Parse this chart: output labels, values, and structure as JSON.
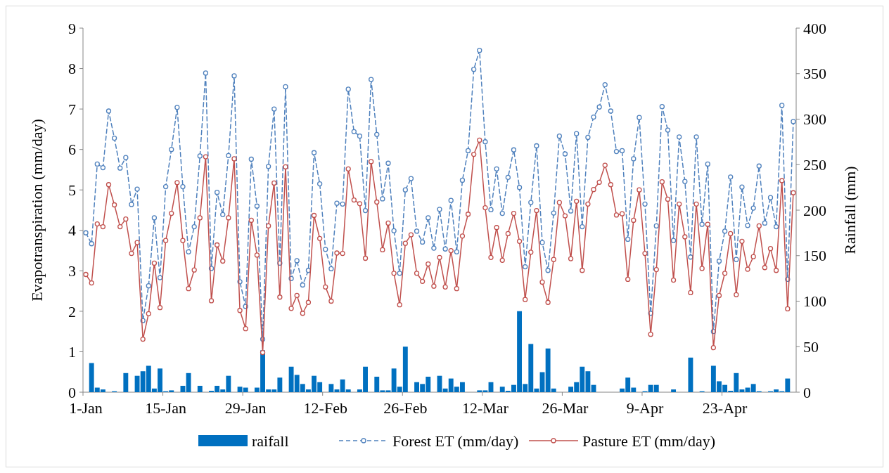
{
  "chart_data": {
    "type": "line",
    "ylabel": "Evapotranspiration (mm/day)",
    "y2label": "Rainfall (mm)",
    "legend": "bottom",
    "categories": [
      "1-Jan",
      null,
      null,
      null,
      null,
      null,
      null,
      null,
      null,
      null,
      null,
      null,
      null,
      null,
      "15-Jan",
      null,
      null,
      null,
      null,
      null,
      null,
      null,
      null,
      null,
      null,
      null,
      null,
      null,
      "29-Jan",
      null,
      null,
      null,
      null,
      null,
      null,
      null,
      null,
      null,
      null,
      null,
      null,
      null,
      "12-Feb",
      null,
      null,
      null,
      null,
      null,
      null,
      null,
      null,
      null,
      null,
      null,
      null,
      null,
      "26-Feb",
      null,
      null,
      null,
      null,
      null,
      null,
      null,
      null,
      null,
      null,
      null,
      null,
      null,
      "12-Mar",
      null,
      null,
      null,
      null,
      null,
      null,
      null,
      null,
      null,
      null,
      null,
      null,
      null,
      "26-Mar",
      null,
      null,
      null,
      null,
      null,
      null,
      null,
      null,
      null,
      null,
      null,
      null,
      null,
      "9-Apr",
      null,
      null,
      null,
      null,
      null,
      null,
      null,
      null,
      null,
      null,
      null,
      null,
      null,
      "23-Apr",
      null,
      null,
      null,
      null,
      null,
      null,
      null,
      null,
      null,
      null,
      null,
      null
    ],
    "ylim": [
      0,
      9
    ],
    "yticks": [
      0,
      1,
      2,
      3,
      4,
      5,
      6,
      7,
      8,
      9
    ],
    "y2lim": [
      0,
      400
    ],
    "y2ticks": [
      0,
      50,
      100,
      150,
      200,
      250,
      300,
      350,
      400
    ],
    "series": [
      {
        "name": "raifall",
        "type": "bar",
        "axis": "y2",
        "color": "#0070c0",
        "values": [
          0,
          32,
          5,
          3,
          0,
          1,
          0,
          21,
          0,
          18,
          23,
          29,
          4,
          26,
          1,
          2,
          0,
          7,
          21,
          0,
          7,
          0,
          1.5,
          7,
          3,
          18,
          0,
          6,
          5,
          0,
          5,
          46,
          3,
          3,
          16,
          0,
          28,
          19,
          9,
          3,
          18,
          11,
          0,
          9,
          3,
          14,
          3,
          0,
          3,
          28,
          0,
          17,
          2,
          2,
          26,
          6,
          50,
          0,
          11,
          9,
          17,
          0,
          18,
          4,
          15,
          6,
          11,
          0,
          0,
          2,
          2,
          11,
          0,
          6,
          1.5,
          8,
          89,
          9,
          53,
          4,
          22,
          48,
          4,
          0,
          0,
          6,
          11,
          28,
          23,
          8,
          0,
          0,
          0,
          0,
          4,
          16,
          5,
          0,
          1,
          8,
          8,
          0,
          0,
          3,
          0,
          0,
          38,
          0,
          1,
          0,
          29,
          12,
          8,
          1.5,
          21,
          3,
          5,
          9,
          1,
          0,
          1,
          3,
          1,
          15,
          0
        ]
      },
      {
        "name": "Forest ET (mm/day)",
        "color": "#4f81bd",
        "line_style": "dashed",
        "marker": "circle",
        "values": [
          3.94,
          3.67,
          5.64,
          5.55,
          6.95,
          6.28,
          5.54,
          5.8,
          4.64,
          5.02,
          1.77,
          2.63,
          4.31,
          2.83,
          5.08,
          6.0,
          7.04,
          5.08,
          3.47,
          4.09,
          5.84,
          7.89,
          3.06,
          4.94,
          4.39,
          5.85,
          7.82,
          2.73,
          2.12,
          5.76,
          4.6,
          1.31,
          5.58,
          7.0,
          3.19,
          7.55,
          2.81,
          3.25,
          2.65,
          3.01,
          5.92,
          5.15,
          3.53,
          3.05,
          4.67,
          4.65,
          7.49,
          6.44,
          6.33,
          4.49,
          7.73,
          6.37,
          4.78,
          5.66,
          3.99,
          2.94,
          5.0,
          5.28,
          3.98,
          3.71,
          4.31,
          3.56,
          4.52,
          3.54,
          4.74,
          3.47,
          5.24,
          5.97,
          7.98,
          8.45,
          6.19,
          4.51,
          5.52,
          4.42,
          5.31,
          5.99,
          5.06,
          3.1,
          4.69,
          6.09,
          3.7,
          3.01,
          4.43,
          6.33,
          5.89,
          4.48,
          6.39,
          4.09,
          6.3,
          6.8,
          7.05,
          7.6,
          6.95,
          5.95,
          5.97,
          3.78,
          5.77,
          6.79,
          4.65,
          1.95,
          4.11,
          7.06,
          6.48,
          3.75,
          6.31,
          5.21,
          3.34,
          6.31,
          4.15,
          5.64,
          1.5,
          3.24,
          3.98,
          5.32,
          3.28,
          5.07,
          4.12,
          4.55,
          5.59,
          4.18,
          4.81,
          4.09,
          7.09,
          2.79,
          6.69
        ]
      },
      {
        "name": "Pasture ET (mm/day)",
        "color": "#c0504d",
        "line_style": "solid",
        "marker": "circle",
        "values": [
          2.91,
          2.7,
          4.16,
          4.09,
          5.13,
          4.63,
          4.09,
          4.28,
          3.43,
          3.7,
          1.31,
          1.94,
          3.19,
          2.09,
          3.75,
          4.42,
          5.18,
          3.75,
          2.56,
          3.02,
          4.31,
          5.82,
          2.26,
          3.64,
          3.24,
          4.31,
          5.77,
          2.02,
          1.57,
          4.25,
          3.39,
          0.98,
          4.11,
          5.17,
          2.35,
          5.57,
          2.07,
          2.39,
          1.95,
          2.22,
          4.37,
          3.8,
          2.6,
          2.25,
          3.44,
          3.43,
          5.52,
          4.75,
          4.66,
          3.31,
          5.7,
          4.7,
          3.52,
          4.18,
          2.94,
          2.16,
          3.68,
          3.89,
          2.94,
          2.74,
          3.17,
          2.62,
          3.33,
          2.6,
          3.5,
          2.56,
          3.86,
          4.4,
          5.88,
          6.23,
          4.56,
          3.33,
          4.07,
          3.26,
          3.92,
          4.42,
          3.73,
          2.29,
          3.46,
          4.49,
          2.72,
          2.22,
          3.28,
          4.69,
          4.36,
          3.3,
          4.72,
          3.01,
          4.65,
          5.01,
          5.19,
          5.61,
          5.13,
          4.38,
          4.41,
          2.79,
          4.25,
          5.0,
          3.43,
          1.43,
          3.03,
          5.2,
          4.77,
          2.77,
          4.65,
          3.84,
          2.46,
          4.65,
          3.06,
          4.15,
          1.1,
          2.39,
          2.94,
          3.92,
          2.41,
          3.73,
          3.04,
          3.35,
          4.11,
          3.08,
          3.55,
          3.01,
          5.23,
          2.06,
          4.93
        ]
      }
    ]
  }
}
